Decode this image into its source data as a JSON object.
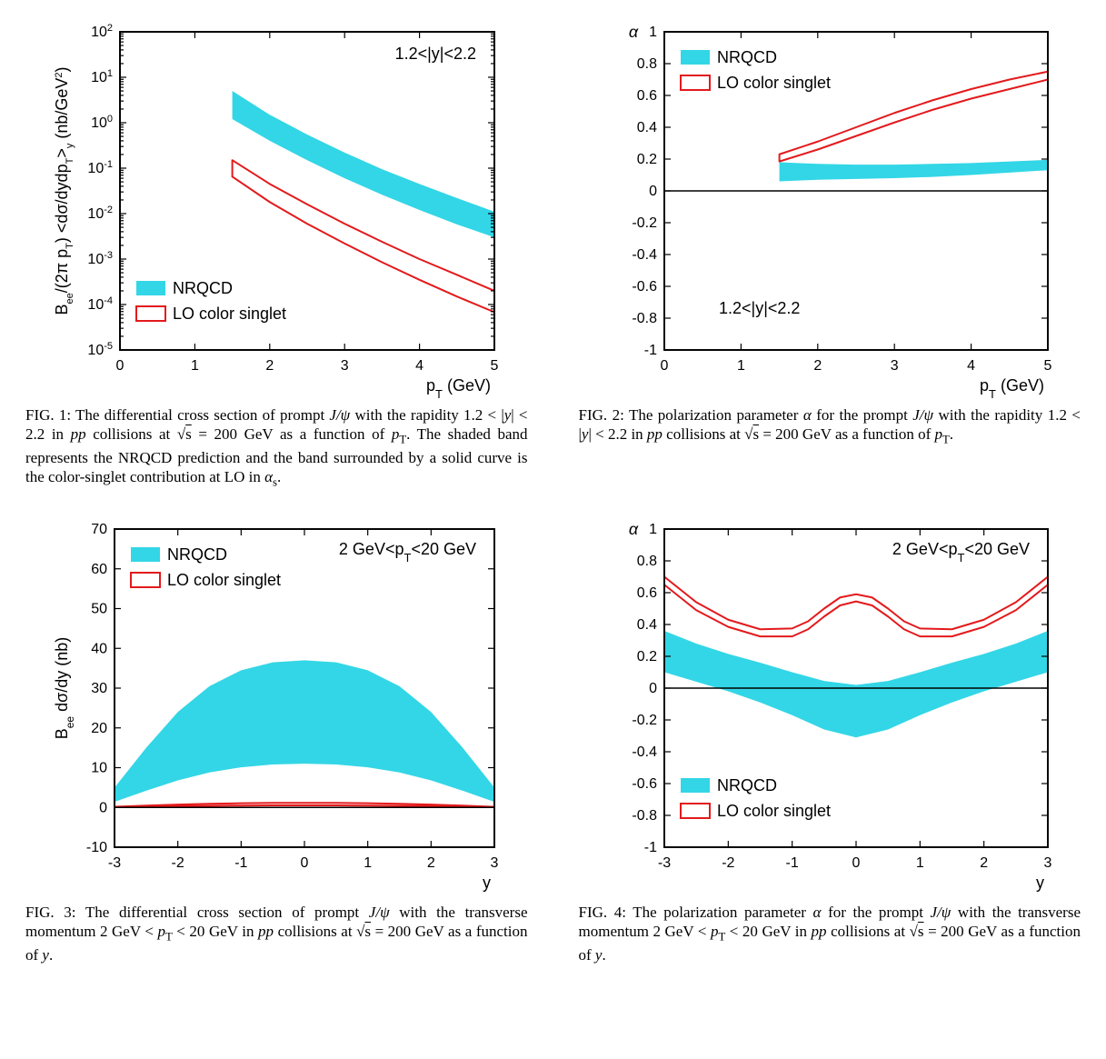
{
  "colors": {
    "nrqcd_fill": "#33d6e6",
    "lo_outline": "#e31a1c",
    "axis": "#000000",
    "bg": "#ffffff"
  },
  "legend_labels": {
    "nrqcd": "NRQCD",
    "lo": "LO color singlet"
  },
  "fig1": {
    "type": "line-band-logy",
    "inplot_text": "1.2<|y|<2.2",
    "xlabel": "p_T (GeV)",
    "ylabel": "B_ee/(2π p_T) <dσ/dydp_T>_y  (nb/GeV^2)",
    "xlim": [
      0,
      5
    ],
    "xtick_step": 1,
    "ylog_exponents": [
      -5,
      -4,
      -3,
      -2,
      -1,
      0,
      1,
      2
    ],
    "nrqcd_upper": [
      [
        1.5,
        5.0
      ],
      [
        2.0,
        1.5
      ],
      [
        2.5,
        0.55
      ],
      [
        3.0,
        0.22
      ],
      [
        3.5,
        0.095
      ],
      [
        4.0,
        0.045
      ],
      [
        4.5,
        0.022
      ],
      [
        5.0,
        0.011
      ]
    ],
    "nrqcd_lower": [
      [
        1.5,
        1.2
      ],
      [
        2.0,
        0.4
      ],
      [
        2.5,
        0.15
      ],
      [
        3.0,
        0.06
      ],
      [
        3.5,
        0.026
      ],
      [
        4.0,
        0.012
      ],
      [
        4.5,
        0.0058
      ],
      [
        5.0,
        0.003
      ]
    ],
    "lo_upper": [
      [
        1.5,
        0.15
      ],
      [
        2.0,
        0.045
      ],
      [
        2.5,
        0.016
      ],
      [
        3.0,
        0.006
      ],
      [
        3.5,
        0.0024
      ],
      [
        4.0,
        0.001
      ],
      [
        4.5,
        0.00045
      ],
      [
        5.0,
        0.0002
      ]
    ],
    "lo_lower": [
      [
        1.5,
        0.065
      ],
      [
        2.0,
        0.018
      ],
      [
        2.5,
        0.006
      ],
      [
        3.0,
        0.0022
      ],
      [
        3.5,
        0.00085
      ],
      [
        4.0,
        0.00035
      ],
      [
        4.5,
        0.00015
      ],
      [
        5.0,
        6.8e-05
      ]
    ],
    "caption": "FIG. 1: The differential cross section of prompt J/ψ with the rapidity 1.2 < |y| < 2.2 in pp collisions at √s = 200 GeV as a function of p_T. The shaded band represents the NRQCD prediction and the band surrounded by a solid curve is the color-singlet contribution at LO in α_s."
  },
  "fig2": {
    "type": "line-band",
    "inplot_text": "1.2<|y|<2.2",
    "xlabel": "p_T (GeV)",
    "ylabel": "α",
    "xlim": [
      0,
      5
    ],
    "xtick_step": 1,
    "ylim": [
      -1,
      1
    ],
    "ytick_step": 0.2,
    "nrqcd_upper": [
      [
        1.5,
        0.18
      ],
      [
        2.0,
        0.17
      ],
      [
        2.5,
        0.165
      ],
      [
        3.0,
        0.165
      ],
      [
        3.5,
        0.17
      ],
      [
        4.0,
        0.175
      ],
      [
        4.5,
        0.185
      ],
      [
        5.0,
        0.195
      ]
    ],
    "nrqcd_lower": [
      [
        1.5,
        0.06
      ],
      [
        2.0,
        0.07
      ],
      [
        2.5,
        0.075
      ],
      [
        3.0,
        0.08
      ],
      [
        3.5,
        0.088
      ],
      [
        4.0,
        0.1
      ],
      [
        4.5,
        0.115
      ],
      [
        5.0,
        0.13
      ]
    ],
    "lo_upper": [
      [
        1.5,
        0.23
      ],
      [
        2.0,
        0.31
      ],
      [
        2.5,
        0.4
      ],
      [
        3.0,
        0.49
      ],
      [
        3.5,
        0.57
      ],
      [
        4.0,
        0.64
      ],
      [
        4.5,
        0.7
      ],
      [
        5.0,
        0.75
      ]
    ],
    "lo_lower": [
      [
        1.5,
        0.185
      ],
      [
        2.0,
        0.26
      ],
      [
        2.5,
        0.345
      ],
      [
        3.0,
        0.43
      ],
      [
        3.5,
        0.51
      ],
      [
        4.0,
        0.58
      ],
      [
        4.5,
        0.64
      ],
      [
        5.0,
        0.7
      ]
    ],
    "caption": "FIG. 2: The polarization parameter α for the prompt J/ψ with the rapidity 1.2 < |y| < 2.2 in pp collisions at √s = 200 GeV as a function of p_T."
  },
  "fig3": {
    "type": "line-band",
    "inplot_text": "2 GeV<p_T<20 GeV",
    "xlabel": "y",
    "ylabel": "B_ee dσ/dy (nb)",
    "xlim": [
      -3,
      3
    ],
    "xtick_step": 1,
    "ylim": [
      -10,
      70
    ],
    "ytick_step": 10,
    "nrqcd_upper": [
      [
        -3,
        5.0
      ],
      [
        -2.5,
        15.0
      ],
      [
        -2.0,
        24.0
      ],
      [
        -1.5,
        30.5
      ],
      [
        -1.0,
        34.5
      ],
      [
        -0.5,
        36.5
      ],
      [
        0,
        37.0
      ],
      [
        0.5,
        36.5
      ],
      [
        1.0,
        34.5
      ],
      [
        1.5,
        30.5
      ],
      [
        2.0,
        24.0
      ],
      [
        2.5,
        15.0
      ],
      [
        3,
        5.0
      ]
    ],
    "nrqcd_lower": [
      [
        -3,
        1.4
      ],
      [
        -2.5,
        4.2
      ],
      [
        -2.0,
        6.8
      ],
      [
        -1.5,
        8.8
      ],
      [
        -1.0,
        10.1
      ],
      [
        -0.5,
        10.8
      ],
      [
        0,
        11.0
      ],
      [
        0.5,
        10.8
      ],
      [
        1.0,
        10.1
      ],
      [
        1.5,
        8.8
      ],
      [
        2.0,
        6.8
      ],
      [
        2.5,
        4.2
      ],
      [
        3,
        1.4
      ]
    ],
    "lo_upper": [
      [
        -3,
        0.15
      ],
      [
        -2.5,
        0.45
      ],
      [
        -2.0,
        0.72
      ],
      [
        -1.5,
        0.92
      ],
      [
        -1.0,
        1.05
      ],
      [
        -0.5,
        1.13
      ],
      [
        0,
        1.15
      ],
      [
        0.5,
        1.13
      ],
      [
        1.0,
        1.05
      ],
      [
        1.5,
        0.92
      ],
      [
        2.0,
        0.72
      ],
      [
        2.5,
        0.45
      ],
      [
        3,
        0.15
      ]
    ],
    "lo_lower": [
      [
        -3,
        0.06
      ],
      [
        -2.5,
        0.18
      ],
      [
        -2.0,
        0.3
      ],
      [
        -1.5,
        0.4
      ],
      [
        -1.0,
        0.47
      ],
      [
        -0.5,
        0.51
      ],
      [
        0,
        0.52
      ],
      [
        0.5,
        0.51
      ],
      [
        1.0,
        0.47
      ],
      [
        1.5,
        0.4
      ],
      [
        2.0,
        0.3
      ],
      [
        2.5,
        0.18
      ],
      [
        3,
        0.06
      ]
    ],
    "caption": "FIG. 3: The differential cross section of prompt J/ψ with the transverse momentum 2 GeV < p_T < 20 GeV in pp collisions at √s = 200 GeV as a function of y."
  },
  "fig4": {
    "type": "line-band",
    "inplot_text": "2 GeV<p_T<20 GeV",
    "xlabel": "y",
    "ylabel": "α",
    "xlim": [
      -3,
      3
    ],
    "xtick_step": 1,
    "ylim": [
      -1,
      1
    ],
    "ytick_step": 0.2,
    "nrqcd_upper": [
      [
        -3,
        0.36
      ],
      [
        -2.5,
        0.28
      ],
      [
        -2.0,
        0.215
      ],
      [
        -1.5,
        0.16
      ],
      [
        -1.0,
        0.1
      ],
      [
        -0.5,
        0.045
      ],
      [
        0,
        0.02
      ],
      [
        0.5,
        0.045
      ],
      [
        1.0,
        0.1
      ],
      [
        1.5,
        0.16
      ],
      [
        2.0,
        0.215
      ],
      [
        2.5,
        0.28
      ],
      [
        3,
        0.36
      ]
    ],
    "nrqcd_lower": [
      [
        -3,
        0.1
      ],
      [
        -2.5,
        0.04
      ],
      [
        -2.0,
        -0.02
      ],
      [
        -1.5,
        -0.09
      ],
      [
        -1.0,
        -0.17
      ],
      [
        -0.5,
        -0.26
      ],
      [
        0,
        -0.31
      ],
      [
        0.5,
        -0.26
      ],
      [
        1.0,
        -0.17
      ],
      [
        1.5,
        -0.09
      ],
      [
        2.0,
        -0.02
      ],
      [
        2.5,
        0.04
      ],
      [
        3,
        0.1
      ]
    ],
    "lo_upper": [
      [
        -3,
        0.7
      ],
      [
        -2.5,
        0.54
      ],
      [
        -2.0,
        0.43
      ],
      [
        -1.5,
        0.37
      ],
      [
        -1.0,
        0.375
      ],
      [
        -0.75,
        0.42
      ],
      [
        -0.5,
        0.5
      ],
      [
        -0.25,
        0.57
      ],
      [
        0,
        0.59
      ],
      [
        0.25,
        0.57
      ],
      [
        0.5,
        0.5
      ],
      [
        0.75,
        0.42
      ],
      [
        1.0,
        0.375
      ],
      [
        1.5,
        0.37
      ],
      [
        2.0,
        0.43
      ],
      [
        2.5,
        0.54
      ],
      [
        3,
        0.7
      ]
    ],
    "lo_lower": [
      [
        -3,
        0.65
      ],
      [
        -2.5,
        0.49
      ],
      [
        -2.0,
        0.385
      ],
      [
        -1.5,
        0.325
      ],
      [
        -1.0,
        0.325
      ],
      [
        -0.75,
        0.37
      ],
      [
        -0.5,
        0.45
      ],
      [
        -0.25,
        0.52
      ],
      [
        0,
        0.545
      ],
      [
        0.25,
        0.52
      ],
      [
        0.5,
        0.45
      ],
      [
        0.75,
        0.37
      ],
      [
        1.0,
        0.325
      ],
      [
        1.5,
        0.325
      ],
      [
        2.0,
        0.385
      ],
      [
        2.5,
        0.49
      ],
      [
        3,
        0.65
      ]
    ],
    "caption": "FIG. 4: The polarization parameter α for the prompt J/ψ with the transverse momentum 2 GeV < p_T < 20 GeV in pp collisions at √s = 200 GeV as a function of y."
  }
}
